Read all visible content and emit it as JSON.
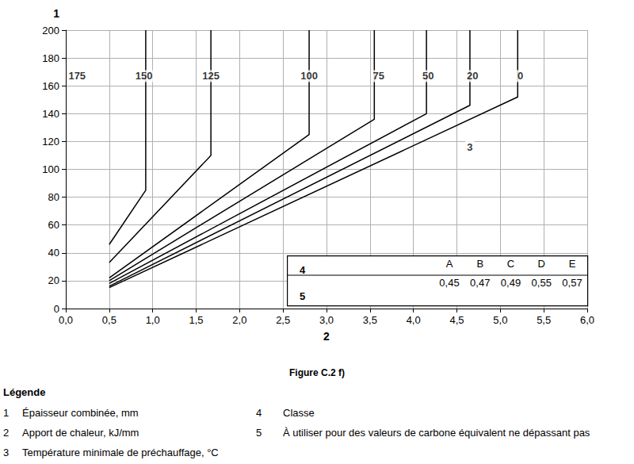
{
  "chart_data": {
    "type": "line",
    "caption": "Figure C.2 f)",
    "x_label": "2",
    "y_label": "1",
    "xlim": [
      0,
      6
    ],
    "ylim": [
      0,
      200
    ],
    "xticks": [
      {
        "value": 0,
        "label": "0,0"
      },
      {
        "value": 0.5,
        "label": "0,5"
      },
      {
        "value": 1,
        "label": "1,0"
      },
      {
        "value": 1.5,
        "label": "1,5"
      },
      {
        "value": 2,
        "label": "2,0"
      },
      {
        "value": 2.5,
        "label": "2,5"
      },
      {
        "value": 3,
        "label": "3,0"
      },
      {
        "value": 3.5,
        "label": "3,5"
      },
      {
        "value": 4,
        "label": "4,0"
      },
      {
        "value": 4.5,
        "label": "4,5"
      },
      {
        "value": 5,
        "label": "5,0"
      },
      {
        "value": 5.5,
        "label": "5,5"
      },
      {
        "value": 6,
        "label": "6,0"
      }
    ],
    "yticks": [
      0,
      20,
      40,
      60,
      80,
      100,
      120,
      140,
      160,
      180,
      200
    ],
    "grid": true,
    "color": "#000000",
    "line_style": "solid",
    "series": [
      {
        "name": "150",
        "x": [
          0.5,
          0.92,
          0.92
        ],
        "values": [
          46,
          85,
          200
        ],
        "label_at": [
          0.9,
          167
        ]
      },
      {
        "name": "125",
        "x": [
          0.5,
          1.67,
          1.67
        ],
        "values": [
          33,
          110,
          200
        ],
        "label_at": [
          1.67,
          167
        ]
      },
      {
        "name": "100",
        "x": [
          0.5,
          2.8,
          2.8
        ],
        "values": [
          22,
          125,
          200
        ],
        "label_at": [
          2.8,
          167
        ]
      },
      {
        "name": "75",
        "x": [
          0.5,
          3.55,
          3.55
        ],
        "values": [
          20,
          136,
          200
        ],
        "label_at": [
          3.6,
          167
        ]
      },
      {
        "name": "50",
        "x": [
          0.5,
          4.15,
          4.15
        ],
        "values": [
          18,
          140,
          200
        ],
        "label_at": [
          4.17,
          167
        ]
      },
      {
        "name": "20",
        "x": [
          0.5,
          4.65,
          4.65
        ],
        "values": [
          16,
          146,
          200
        ],
        "label_at": [
          4.68,
          167
        ]
      },
      {
        "name": "0",
        "x": [
          0.5,
          5.2,
          5.2
        ],
        "values": [
          15,
          152,
          200
        ],
        "label_at": [
          5.23,
          167
        ]
      }
    ],
    "annotations": [
      {
        "text": "175",
        "x": 0.13,
        "y": 167
      },
      {
        "text": "3",
        "x": 4.65,
        "y": 116
      }
    ],
    "class_table": {
      "row_label": "4",
      "value_row_label": "5",
      "classes": [
        "A",
        "B",
        "C",
        "D",
        "E"
      ],
      "values": [
        {
          "value": 0.45,
          "label": "0,45"
        },
        {
          "value": 0.47,
          "label": "0,47"
        },
        {
          "value": 0.49,
          "label": "0,49"
        },
        {
          "value": 0.55,
          "label": "0,55"
        },
        {
          "value": 0.57,
          "label": "0,57"
        }
      ]
    },
    "key": {
      "title": "Légende",
      "items": [
        {
          "number": "1",
          "text": "Épaisseur combinée, mm"
        },
        {
          "number": "2",
          "text": "Apport de chaleur, kJ/mm"
        },
        {
          "number": "3",
          "text": "Température minimale de préchauffage, °C"
        },
        {
          "number": "4",
          "text": "Classe"
        },
        {
          "number": "5",
          "text": "À utiliser pour des valeurs de carbone équivalent ne dépassant pas"
        }
      ]
    }
  }
}
